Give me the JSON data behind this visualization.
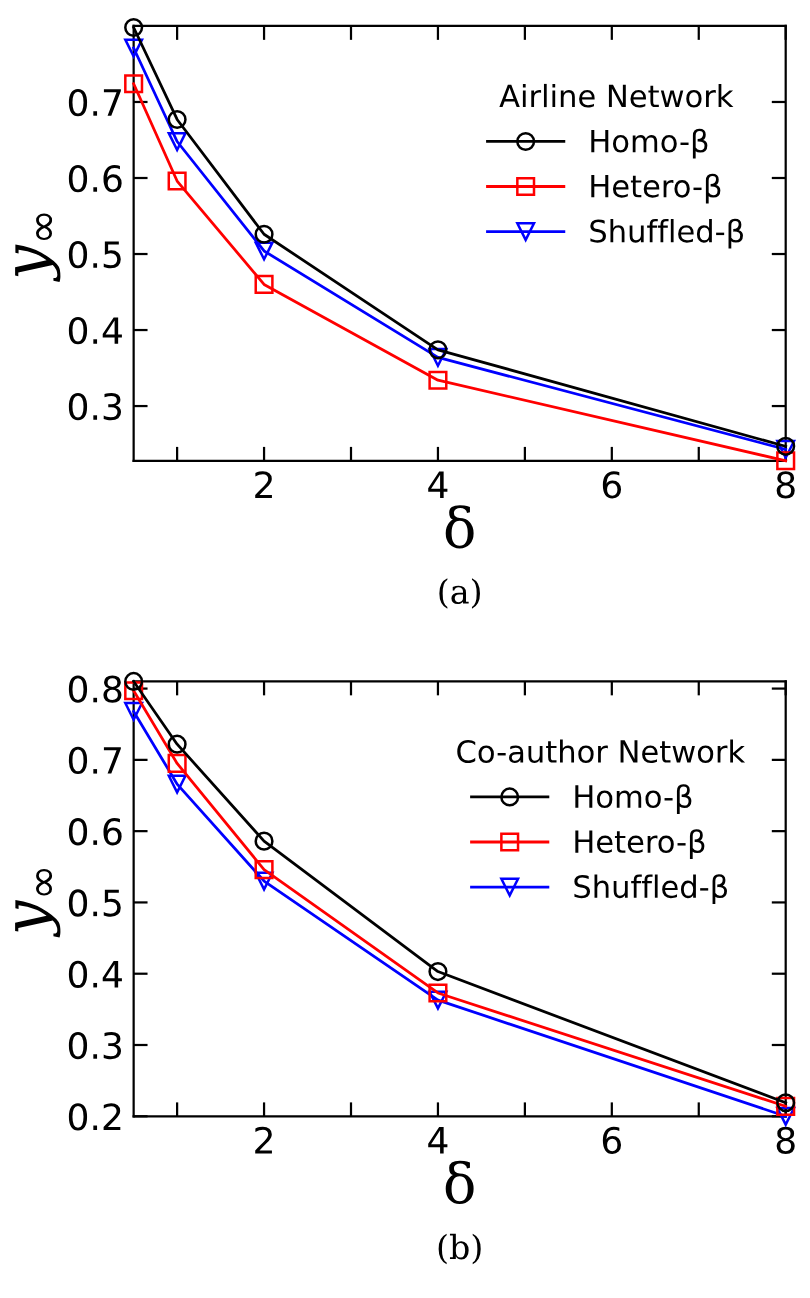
{
  "chart_data": [
    {
      "type": "line",
      "xlabel": "δ",
      "ylabel": "y$_{∞}$",
      "legend_title": "Airline Network",
      "annotations": [
        "(a)"
      ],
      "x": [
        0.5,
        1,
        2,
        4,
        8
      ],
      "xlim": [
        0.5,
        8
      ],
      "ylim": [
        0.228,
        0.8
      ],
      "xticks": [
        {
          "value": 1,
          "label": null
        },
        2,
        {
          "value": 3,
          "label": null
        },
        4,
        {
          "value": 5,
          "label": null
        },
        6,
        {
          "value": 7,
          "label": null
        },
        8
      ],
      "yticks": [
        0.3,
        0.4,
        0.5,
        0.6,
        0.7
      ],
      "grid": false,
      "legend": "top right",
      "line_style": "solid",
      "series": [
        {
          "name": "Homo-β",
          "color": "#000000",
          "marker": "circle",
          "values": [
            0.798,
            0.677,
            0.526,
            0.374,
            0.247
          ]
        },
        {
          "name": "Hetero-β",
          "color": "#ff0000",
          "marker": "square",
          "values": [
            0.724,
            0.596,
            0.46,
            0.334,
            0.228
          ]
        },
        {
          "name": "Shuffled-β",
          "color": "#0000ff",
          "marker": "triangle",
          "values": [
            0.771,
            0.648,
            0.504,
            0.364,
            0.243
          ]
        }
      ]
    },
    {
      "type": "line",
      "xlabel": "δ",
      "ylabel": "y$_{∞}$",
      "legend_title": "Co-author Network",
      "annotations": [
        "(b)"
      ],
      "x": [
        0.5,
        1,
        2,
        4,
        8
      ],
      "xlim": [
        0.5,
        8
      ],
      "ylim": [
        0.2,
        0.81
      ],
      "xticks": [
        {
          "value": 1,
          "label": null
        },
        2,
        {
          "value": 3,
          "label": null
        },
        4,
        {
          "value": 5,
          "label": null
        },
        6,
        {
          "value": 7,
          "label": null
        },
        8
      ],
      "yticks": [
        0.2,
        0.3,
        0.4,
        0.5,
        0.6,
        0.7,
        0.8
      ],
      "grid": false,
      "legend": "top right",
      "line_style": "solid",
      "series": [
        {
          "name": "Homo-β",
          "color": "#000000",
          "marker": "circle",
          "values": [
            0.81,
            0.722,
            0.586,
            0.403,
            0.219
          ]
        },
        {
          "name": "Hetero-β",
          "color": "#ff0000",
          "marker": "square",
          "values": [
            0.797,
            0.695,
            0.546,
            0.373,
            0.214
          ]
        },
        {
          "name": "Shuffled-β",
          "color": "#0000ff",
          "marker": "triangle",
          "values": [
            0.768,
            0.666,
            0.53,
            0.363,
            0.2
          ]
        }
      ]
    }
  ]
}
